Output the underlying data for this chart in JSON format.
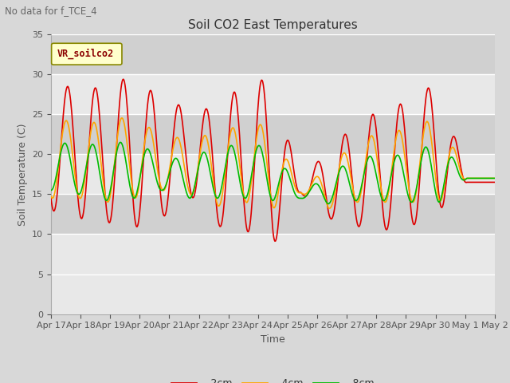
{
  "title": "Soil CO2 East Temperatures",
  "no_data_text": "No data for f_TCE_4",
  "legend_label_text": "VR_soilco2",
  "xlabel": "Time",
  "ylabel": "Soil Temperature (C)",
  "ylim": [
    0,
    35
  ],
  "yticks": [
    0,
    5,
    10,
    15,
    20,
    25,
    30,
    35
  ],
  "bg_color": "#d8d8d8",
  "plot_bg_color": "#e8e8e8",
  "line_colors": {
    "-2cm": "#dd0000",
    "-4cm": "#ffa500",
    "-8cm": "#00bb00"
  },
  "x_tick_labels": [
    "Apr 17",
    "Apr 18",
    "Apr 19",
    "Apr 20",
    "Apr 21",
    "Apr 22",
    "Apr 23",
    "Apr 24",
    "Apr 25",
    "Apr 26",
    "Apr 27",
    "Apr 28",
    "Apr 29",
    "Apr 30",
    "May 1",
    "May 2"
  ],
  "bands": [
    [
      10,
      15,
      "#d0d0d0"
    ],
    [
      20,
      25,
      "#d0d0d0"
    ],
    [
      30,
      35,
      "#d0d0d0"
    ]
  ]
}
